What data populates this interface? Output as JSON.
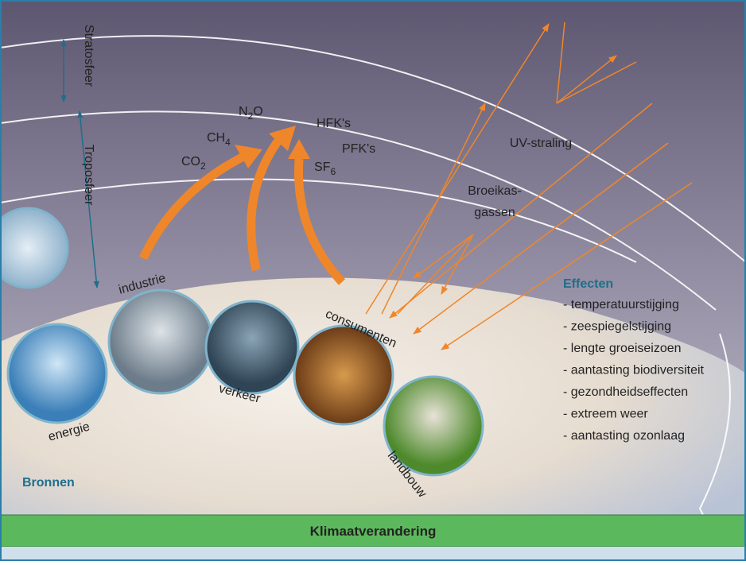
{
  "diagram": {
    "layers": [
      "Stratosfeer",
      "Troposfeer"
    ],
    "gases_left": [
      {
        "base": "N",
        "sub": "2",
        "after": "O"
      },
      {
        "base": "CH",
        "sub": "4"
      },
      {
        "base": "CO",
        "sub": "2"
      }
    ],
    "gases_right": [
      {
        "base": "HFK's"
      },
      {
        "base": "PFK's"
      },
      {
        "base": "SF",
        "sub": "6"
      }
    ],
    "radiation_label": "UV-straling",
    "greenhouse_label": [
      "Broeikas-",
      "gassen"
    ],
    "sources": [
      "industrie",
      "energie",
      "verkeer",
      "consumenten",
      "landbouw"
    ],
    "sources_title": "Bronnen",
    "effects": {
      "title": "Effecten",
      "items": [
        "- temperatuurstijging",
        "- zeespiegelstijging",
        "- lengte groeiseizoen",
        "- aantasting biodiversiteit",
        "- gezondheidseffecten",
        "- extreem weer",
        "- aantasting ozonlaag"
      ]
    },
    "footer": "Klimaatverandering"
  }
}
